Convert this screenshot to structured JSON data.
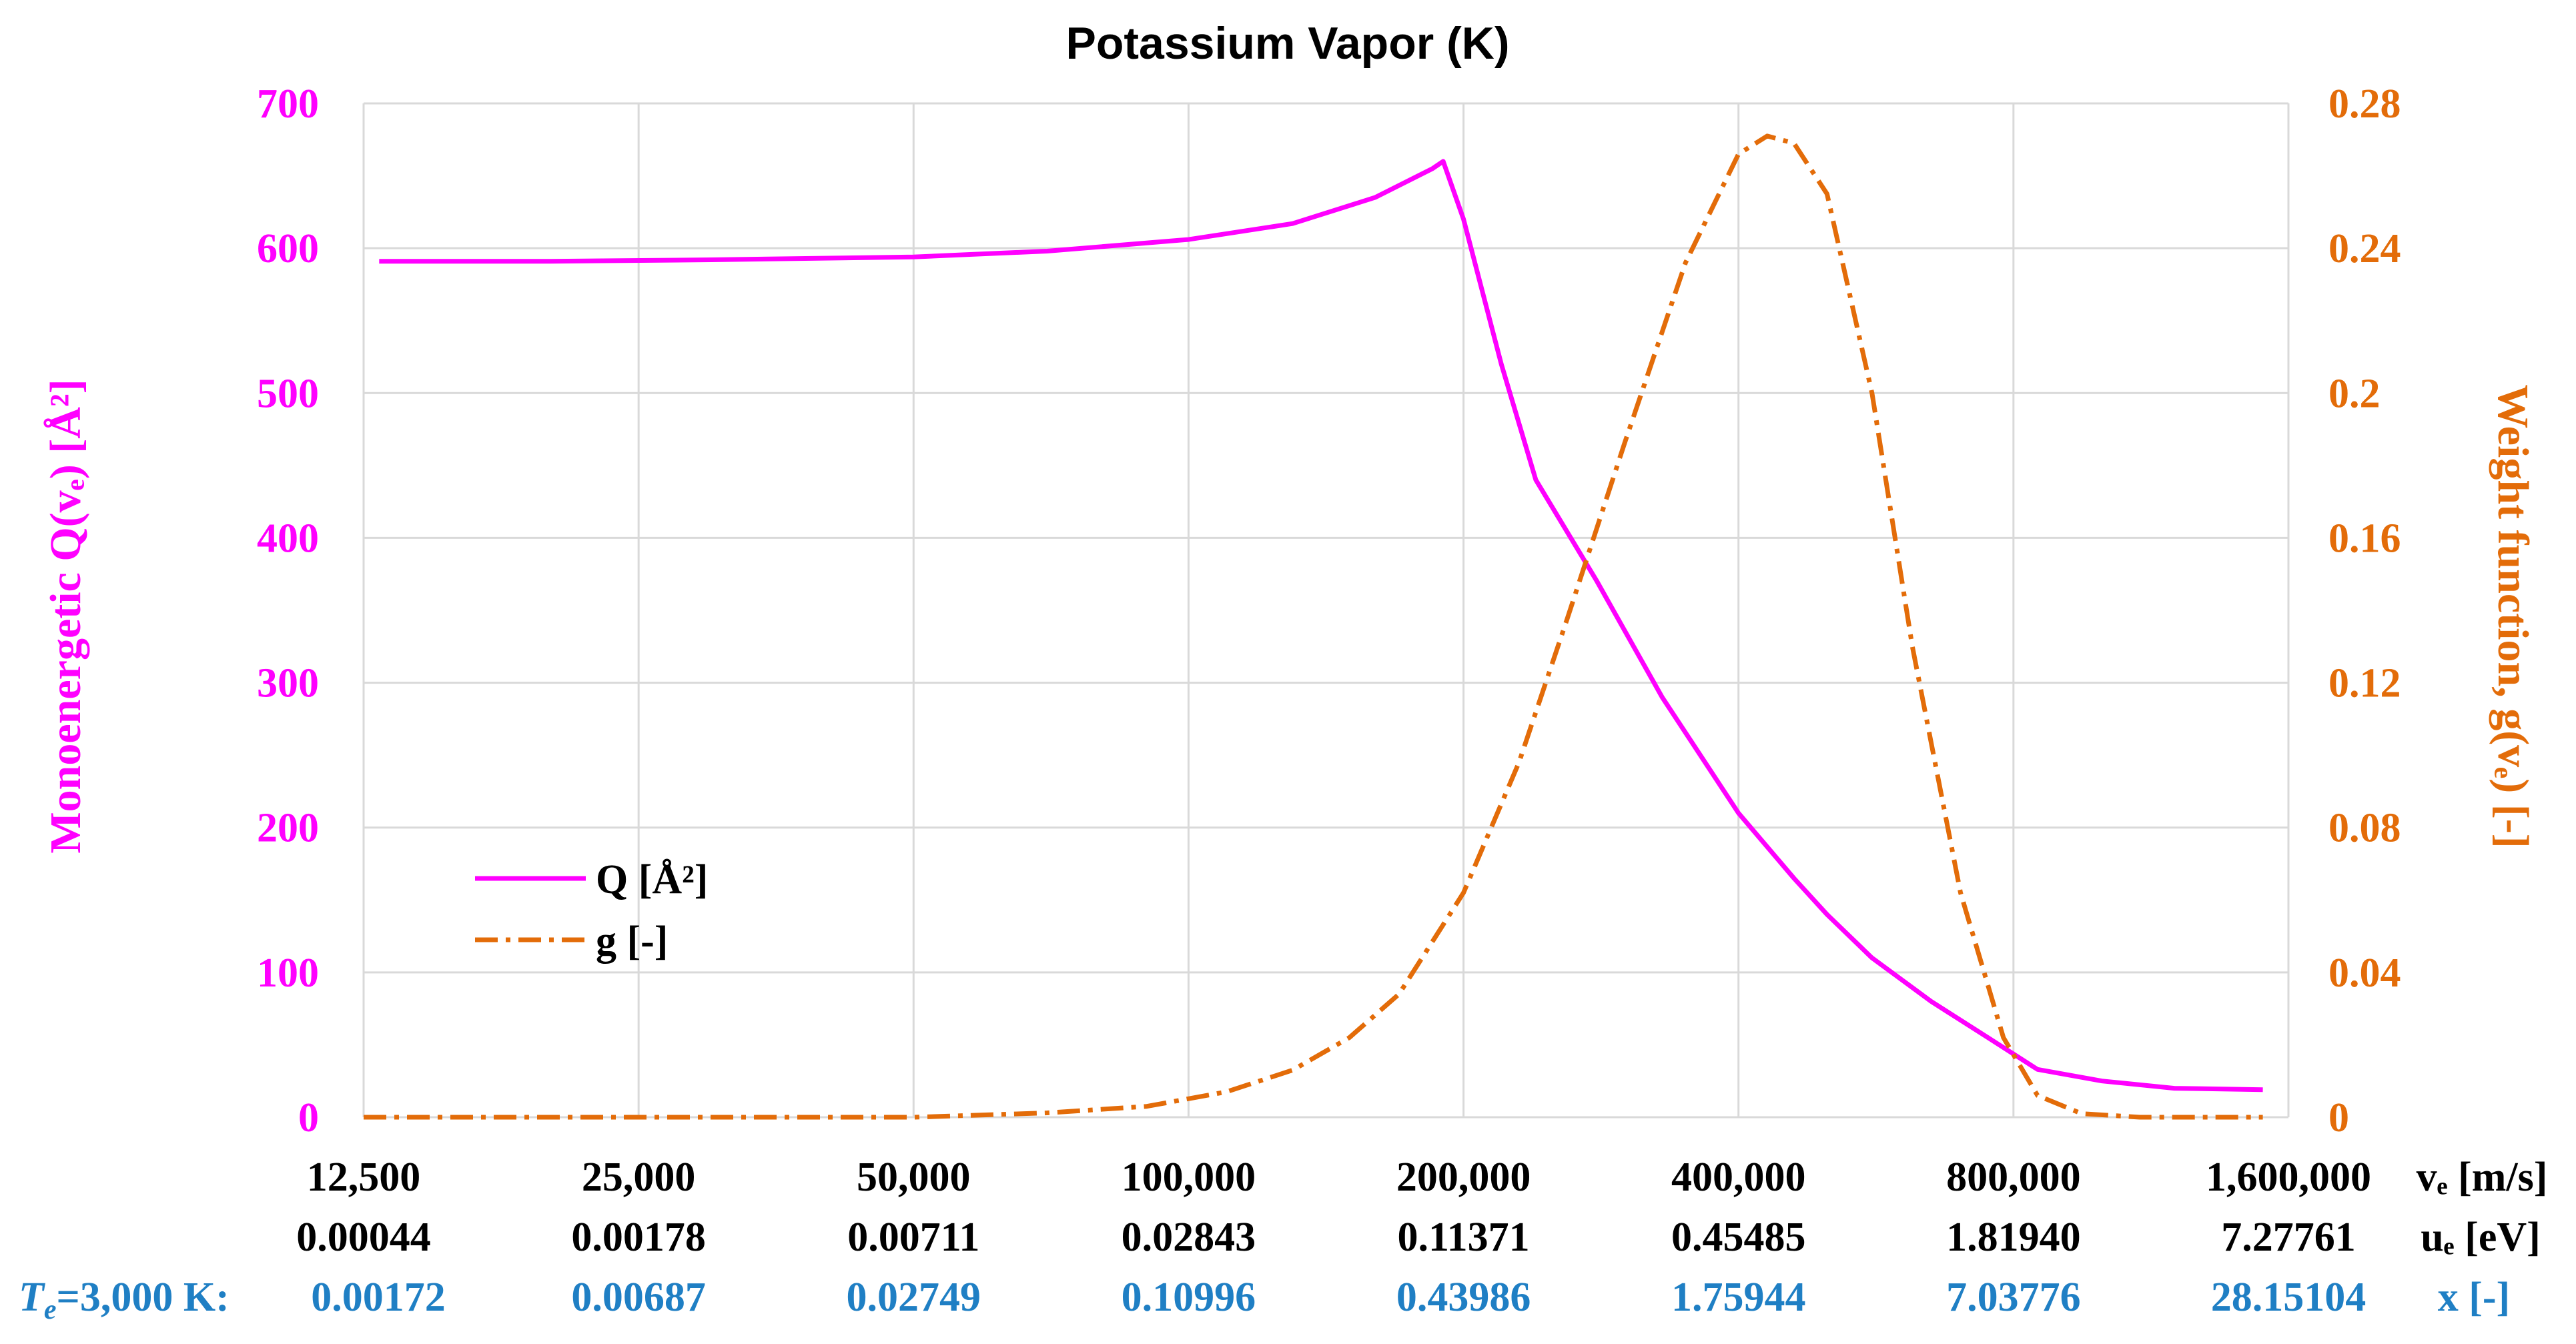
{
  "chart_data": {
    "type": "line",
    "title": "Potassium Vapor (K)",
    "ylabel_left": "Monoenergetic Q(vₑ) [Å²]",
    "ylabel_right": "Weight function, g(vₑ) [-]",
    "ylim_left": [
      0,
      700
    ],
    "ylim_right": [
      0,
      0.28
    ],
    "yticks_left": [
      "0",
      "100",
      "200",
      "300",
      "400",
      "500",
      "600",
      "700"
    ],
    "yticks_right": [
      "0",
      "0.04",
      "0.08",
      "0.12",
      "0.16",
      "0.2",
      "0.24",
      "0.28"
    ],
    "x_scale": "log",
    "xlim": [
      12500,
      1600000
    ],
    "x_ticks": [
      12500,
      25000,
      50000,
      100000,
      200000,
      400000,
      800000,
      1600000
    ],
    "x_tick_labels": [
      "12,500",
      "25,000",
      "50,000",
      "100,000",
      "200,000",
      "400,000",
      "800,000",
      "1,600,000"
    ],
    "x_axis_label": "vₑ [m/s]",
    "secondary_row": {
      "label": "uₑ [eV]",
      "values": [
        "0.00044",
        "0.00178",
        "0.00711",
        "0.02843",
        "0.11371",
        "0.45485",
        "1.81940",
        "7.27761"
      ]
    },
    "tertiary_row": {
      "prefix_var": "T",
      "prefix_sub": "e",
      "prefix_rest": "=3,000 K:",
      "label": "x [-]",
      "values": [
        "0.00172",
        "0.00687",
        "0.02749",
        "0.10996",
        "0.43986",
        "1.75944",
        "7.03776",
        "28.15104"
      ]
    },
    "grid": true,
    "legend_position": "center-left",
    "series": [
      {
        "name": "Q [Å²]",
        "axis": "left",
        "color": "#ff00ff",
        "style": "solid",
        "x": [
          13000,
          20000,
          30000,
          50000,
          70000,
          100000,
          130000,
          160000,
          185000,
          190000,
          200000,
          220000,
          240000,
          280000,
          330000,
          400000,
          460000,
          500000,
          560000,
          650000,
          750000,
          850000,
          1000000,
          1200000,
          1500000
        ],
        "y": [
          591,
          591,
          592,
          594,
          598,
          606,
          617,
          635,
          655,
          660,
          620,
          520,
          440,
          370,
          290,
          210,
          165,
          140,
          110,
          80,
          55,
          33,
          25,
          20,
          19
        ]
      },
      {
        "name": "g [-]",
        "axis": "right",
        "color": "#e36c09",
        "style": "dashdot",
        "x": [
          12500,
          30000,
          50000,
          70000,
          90000,
          110000,
          130000,
          150000,
          170000,
          200000,
          230000,
          260000,
          300000,
          350000,
          400000,
          430000,
          460000,
          500000,
          560000,
          620000,
          700000,
          780000,
          850000,
          950000,
          1100000,
          1300000,
          1500000
        ],
        "y": [
          0,
          0,
          0,
          0.0012,
          0.003,
          0.007,
          0.013,
          0.022,
          0.034,
          0.062,
          0.098,
          0.138,
          0.186,
          0.236,
          0.266,
          0.271,
          0.269,
          0.255,
          0.2,
          0.13,
          0.062,
          0.022,
          0.006,
          0.001,
          0,
          0,
          0
        ]
      }
    ]
  }
}
